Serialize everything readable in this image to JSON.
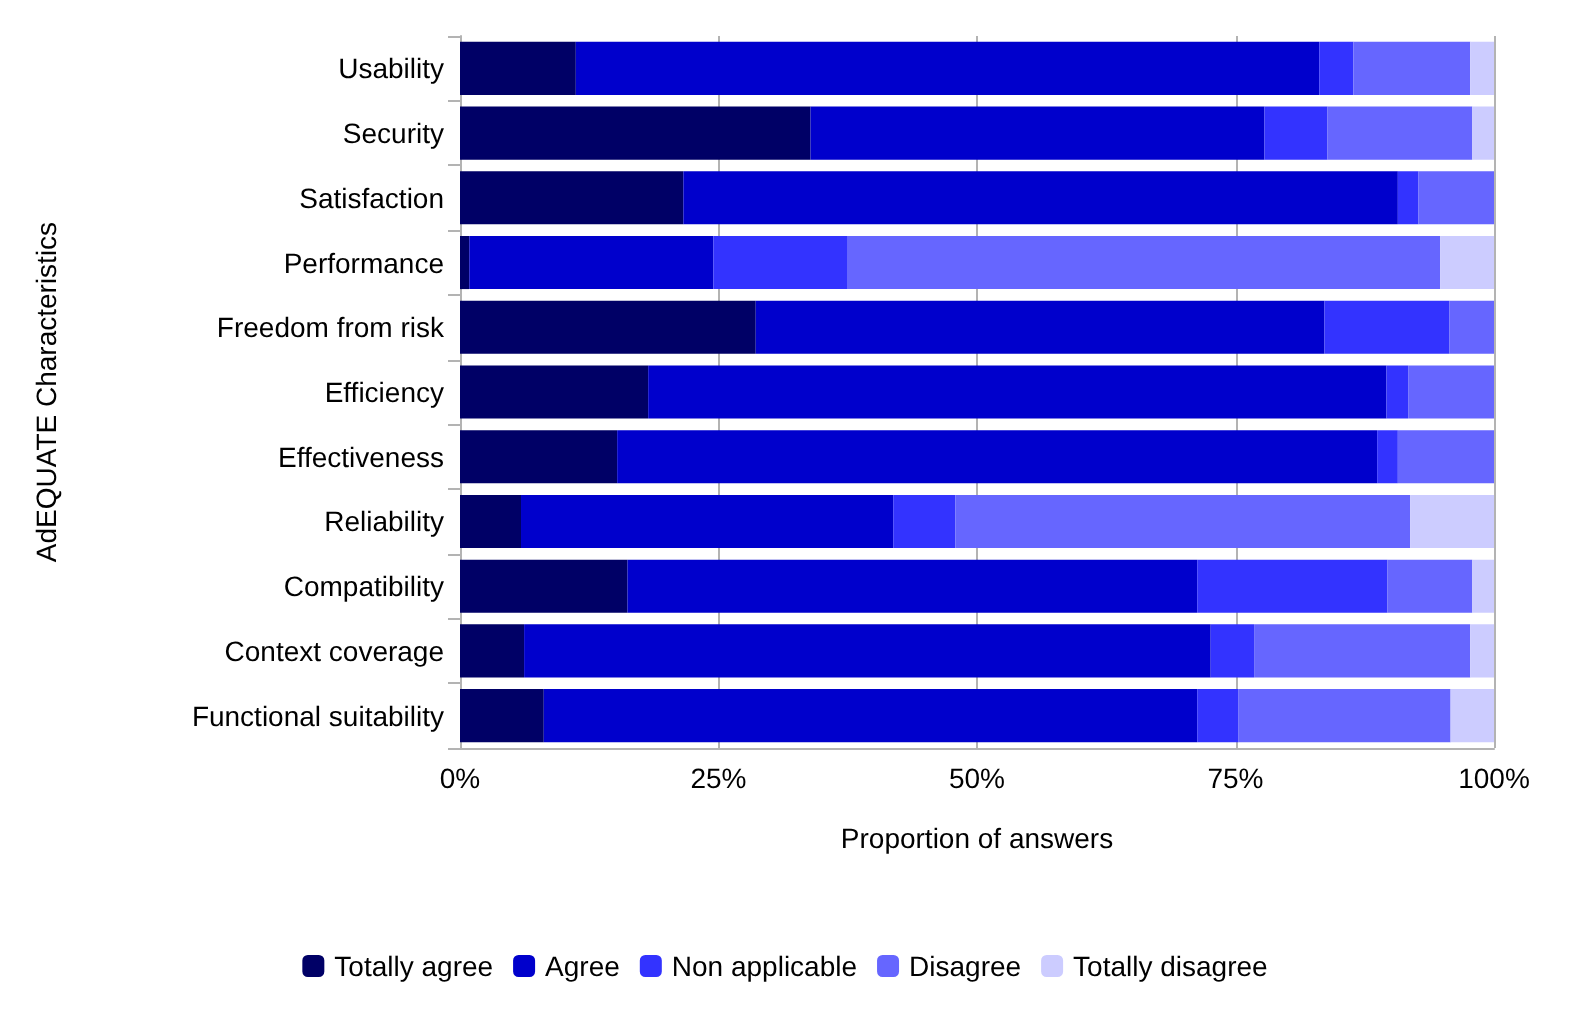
{
  "chart_data": {
    "type": "bar",
    "orientation": "horizontal",
    "stacked": true,
    "xlabel": "Proportion of answers",
    "ylabel": "AdEQUATE Characteristics",
    "categories": [
      "Usability",
      "Security",
      "Satisfaction",
      "Performance",
      "Freedom from risk",
      "Efficiency",
      "Effectiveness",
      "Reliability",
      "Compatibility",
      "Context coverage",
      "Functional suitability"
    ],
    "series": [
      {
        "name": "Totally agree",
        "color": "#000066",
        "values": [
          11.2,
          33.9,
          21.6,
          0.9,
          28.6,
          18.2,
          15.2,
          5.9,
          16.2,
          6.2,
          8.1
        ]
      },
      {
        "name": "Agree",
        "color": "#0000cc",
        "values": [
          71.9,
          43.9,
          69.1,
          23.6,
          55.0,
          71.4,
          73.5,
          36.0,
          55.1,
          66.4,
          63.2
        ]
      },
      {
        "name": "Non applicable",
        "color": "#3333ff",
        "values": [
          3.3,
          6.1,
          2.0,
          13.0,
          12.1,
          2.1,
          2.0,
          6.0,
          18.4,
          4.2,
          4.0
        ]
      },
      {
        "name": "Disagree",
        "color": "#6666ff",
        "values": [
          11.3,
          14.0,
          7.3,
          57.3,
          4.3,
          8.3,
          9.3,
          44.0,
          8.2,
          20.9,
          20.5
        ]
      },
      {
        "name": "Totally disagree",
        "color": "#ccccff",
        "values": [
          2.3,
          2.1,
          0,
          5.2,
          0,
          0,
          0,
          8.1,
          2.1,
          2.3,
          4.2
        ]
      }
    ],
    "xlim": [
      0,
      100
    ],
    "xticks": [
      {
        "value": 0,
        "label": "0%"
      },
      {
        "value": 25,
        "label": "25%"
      },
      {
        "value": 50,
        "label": "50%"
      },
      {
        "value": 75,
        "label": "75%"
      },
      {
        "value": 100,
        "label": "100%"
      }
    ],
    "grid": "x",
    "legend": "bottom"
  }
}
